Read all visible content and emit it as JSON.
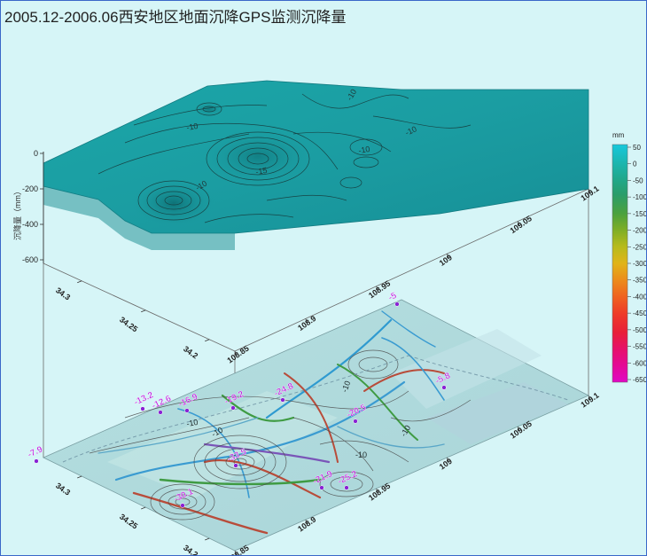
{
  "window": {
    "title": "2005.12-2006.06西安地区地面沉降GPS监测沉降量"
  },
  "chart_data": {
    "type": "surface",
    "title": "2005.12-2006.06西安地区地面沉降GPS监测沉降量",
    "zlabel": "沉降量（mm）",
    "z_ticks": [
      "0",
      "-200",
      "-400",
      "-600"
    ],
    "zlim": [
      -650,
      50
    ],
    "x_axis_label": "",
    "x_ticks": [
      "108.85",
      "108.9",
      "108.95",
      "109",
      "109.05",
      "109.1"
    ],
    "y_ticks": [
      "34.2",
      "34.25",
      "34.3"
    ],
    "xlim": [
      108.85,
      109.1
    ],
    "ylim": [
      34.18,
      34.33
    ],
    "colorbar": {
      "unit": "mm",
      "ticks": [
        "50",
        "0",
        "-50",
        "-100",
        "-150",
        "-200",
        "-250",
        "-300",
        "-350",
        "-400",
        "-450",
        "-500",
        "-550",
        "-600",
        "-650"
      ],
      "colors": [
        "#17c8dc",
        "#1bb8b4",
        "#20a98e",
        "#2a9d6a",
        "#4ba13e",
        "#7fae26",
        "#b7bb1c",
        "#e0b419",
        "#ec8c1c",
        "#ef6320",
        "#ee3c28",
        "#e82038",
        "#e6116a",
        "#e40a96",
        "#e008c4"
      ]
    },
    "surface_contour_labels": [
      "-10",
      "-10",
      "-10",
      "-15",
      "-10",
      "-10"
    ],
    "points": [
      {
        "label": "-13.2",
        "value": -13.2
      },
      {
        "label": "-16.9",
        "value": -16.9
      },
      {
        "label": "-19.2",
        "value": -19.2
      },
      {
        "label": "-24.8",
        "value": -24.8
      },
      {
        "label": "-20.5",
        "value": -20.5
      },
      {
        "label": "-5.8",
        "value": -5.8
      },
      {
        "label": "-7.9",
        "value": -7.9
      },
      {
        "label": "-33.5",
        "value": -33.5
      },
      {
        "label": "-21.9",
        "value": -21.9
      },
      {
        "label": "-25.2",
        "value": -25.2
      },
      {
        "label": "-30.1",
        "value": -30.1
      },
      {
        "label": "-12.6",
        "value": -12.6
      },
      {
        "label": "-5",
        "value": -5
      }
    ],
    "base_contour_labels": [
      "-10",
      "-10",
      "-10",
      "-10",
      "-10"
    ]
  }
}
